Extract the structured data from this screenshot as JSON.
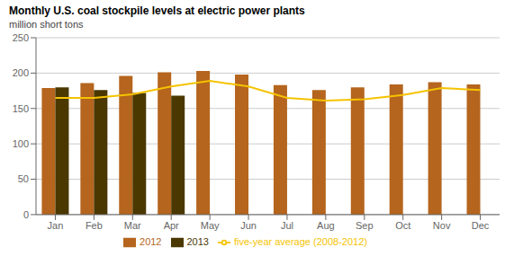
{
  "chart_data": {
    "type": "bar",
    "title": "Monthly U.S. coal stockpile levels at electric power plants",
    "ylabel": "million short tons",
    "categories": [
      "Jan",
      "Feb",
      "Mar",
      "Apr",
      "May",
      "Jun",
      "Jul",
      "Aug",
      "Sep",
      "Oct",
      "Nov",
      "Dec"
    ],
    "series": [
      {
        "name": "2012",
        "type": "bar",
        "color": "#b5651d",
        "values": [
          179,
          186,
          196,
          201,
          203,
          198,
          183,
          176,
          180,
          184,
          187,
          184
        ]
      },
      {
        "name": "2013",
        "type": "bar",
        "color": "#4a3800",
        "values": [
          180,
          176,
          172,
          168,
          null,
          null,
          null,
          null,
          null,
          null,
          null,
          null
        ]
      },
      {
        "name": "five-year average (2008-2012)",
        "type": "line",
        "color": "#f5c300",
        "values": [
          165,
          165,
          170,
          181,
          189,
          181,
          165,
          161,
          163,
          169,
          179,
          176
        ]
      }
    ],
    "ylim": [
      0,
      250
    ],
    "yticks": [
      0,
      50,
      100,
      150,
      200,
      250
    ],
    "grid": true,
    "legend": "bottom"
  }
}
